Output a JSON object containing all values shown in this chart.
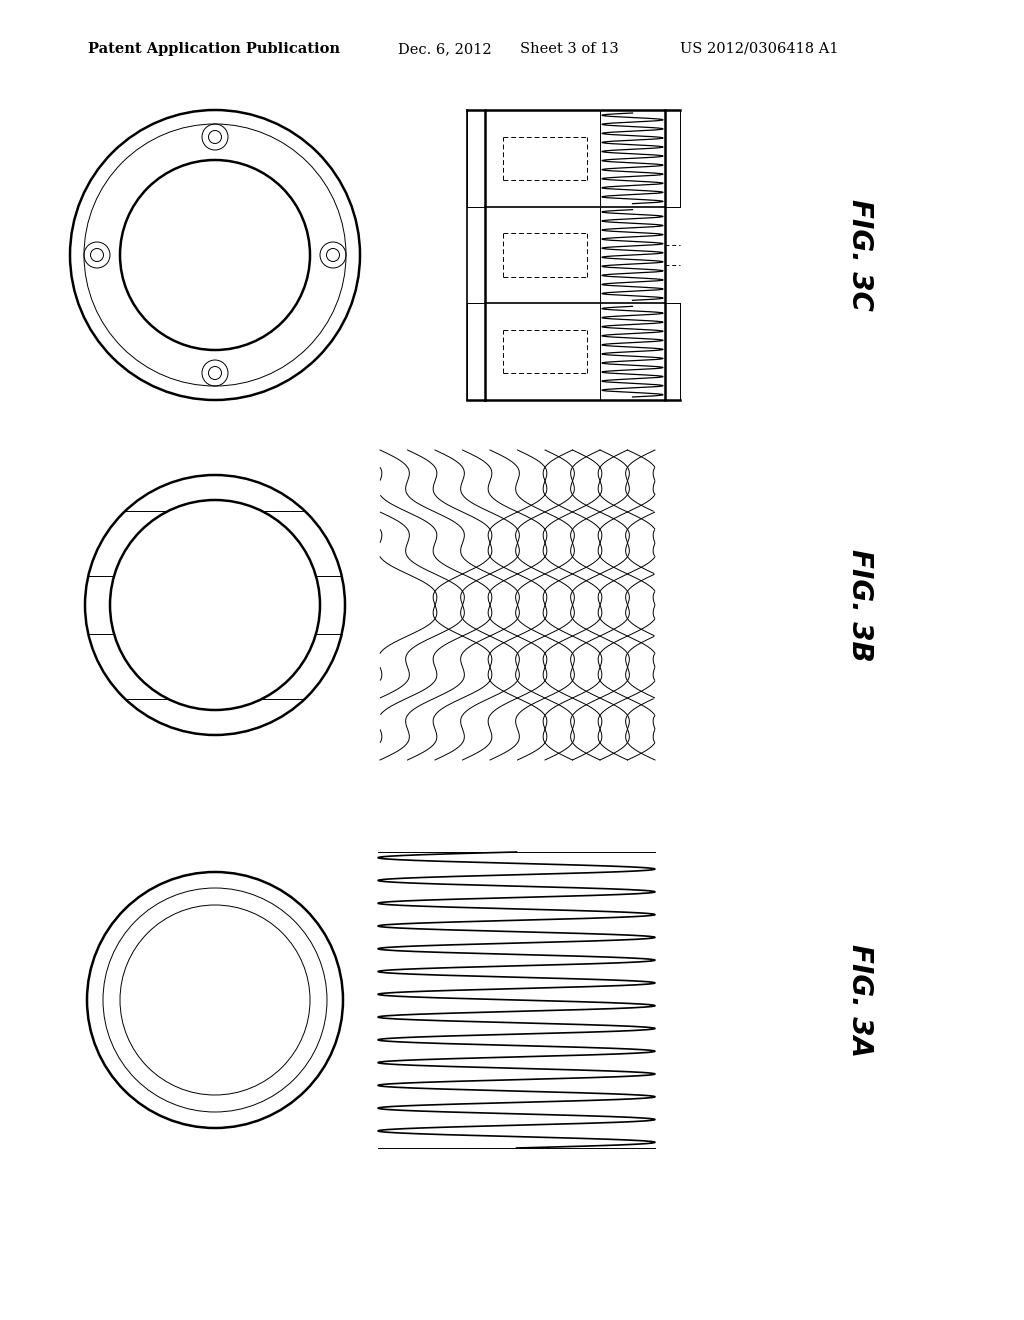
{
  "bg_color": "#ffffff",
  "line_color": "#000000",
  "header_text": "Patent Application Publication",
  "header_date": "Dec. 6, 2012",
  "header_sheet": "Sheet 3 of 13",
  "header_patent": "US 2012/0306418 A1",
  "fig_labels": [
    "FIG. 3C",
    "FIG. 3B",
    "FIG. 3A"
  ],
  "fig_label_fontsize": 20,
  "header_fontsize": 10.5
}
